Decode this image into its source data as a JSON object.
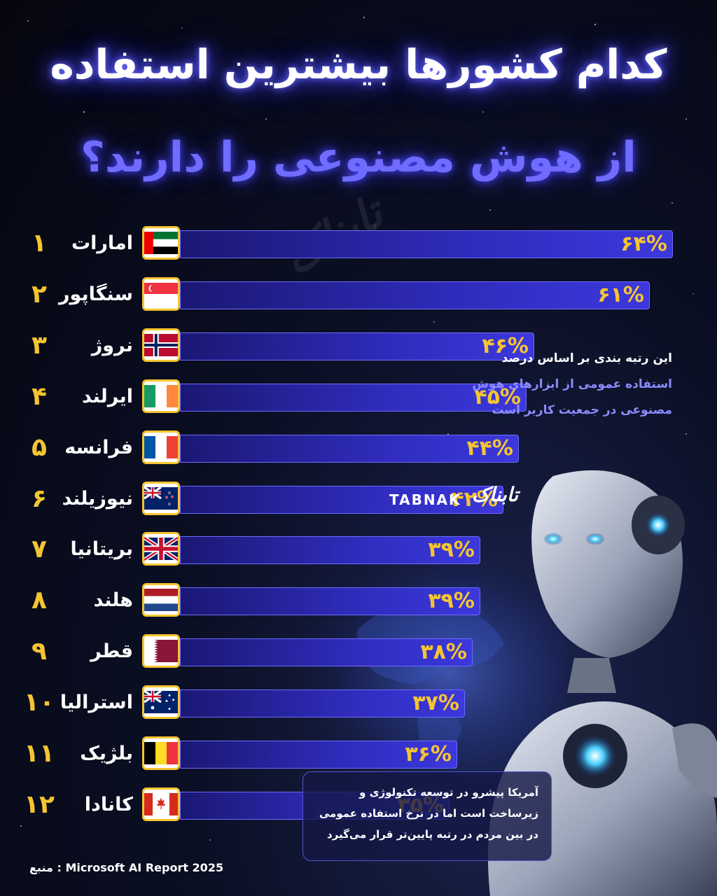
{
  "title_line1": "کدام کشورها بیشترین استفاده",
  "title_line2": "از هوش مصنوعی را دارند؟",
  "watermark": "تابناک",
  "note_top": {
    "line1": "این رتبه بندی بر اساس درصد",
    "line2": "استفاده عمومی از ابزارهای هوش",
    "line3": "مصنوعی در جمعیت کاربر است"
  },
  "logo": {
    "latin": "TABNAK",
    "persian": "تابناک"
  },
  "note_bottom": {
    "line1": "آمریکا پیشرو در توسعه تکنولوژی و",
    "line2": "زیرساخت است اما در نرخ استفاده عمومی",
    "line3": "در بین مردم در رتبه پایین‌تر قرار می‌گیرد"
  },
  "source": "منبع : Microsoft AI Report 2025",
  "colors": {
    "accent": "#f5c531",
    "bar": "#2f2cbd",
    "title_glow": "#6a6cff",
    "background": "#05060f"
  },
  "chart_data": {
    "type": "bar",
    "orientation": "horizontal",
    "unit": "%",
    "rows": [
      {
        "rank": "۱",
        "country": "امارات",
        "value": 64,
        "label": "۶۴%",
        "flag": "uae-flag"
      },
      {
        "rank": "۲",
        "country": "سنگاپور",
        "value": 61,
        "label": "۶۱%",
        "flag": "singapore-flag"
      },
      {
        "rank": "۳",
        "country": "نروژ",
        "value": 46,
        "label": "۴۶%",
        "flag": "norway-flag"
      },
      {
        "rank": "۴",
        "country": "ایرلند",
        "value": 45,
        "label": "۴۵%",
        "flag": "ireland-flag"
      },
      {
        "rank": "۵",
        "country": "فرانسه",
        "value": 44,
        "label": "۴۴%",
        "flag": "france-flag"
      },
      {
        "rank": "۶",
        "country": "نیوزیلند",
        "value": 42,
        "label": "۴۲%",
        "flag": "new-zealand-flag"
      },
      {
        "rank": "۷",
        "country": "بریتانیا",
        "value": 39,
        "label": "۳۹%",
        "flag": "uk-flag"
      },
      {
        "rank": "۸",
        "country": "هلند",
        "value": 39,
        "label": "۳۹%",
        "flag": "netherlands-flag"
      },
      {
        "rank": "۹",
        "country": "قطر",
        "value": 38,
        "label": "۳۸%",
        "flag": "qatar-flag"
      },
      {
        "rank": "۱۰",
        "country": "استرالیا",
        "value": 37,
        "label": "۳۷%",
        "flag": "australia-flag"
      },
      {
        "rank": "۱۱",
        "country": "بلژیک",
        "value": 36,
        "label": "۳۶%",
        "flag": "belgium-flag"
      },
      {
        "rank": "۱۲",
        "country": "کانادا",
        "value": 35,
        "label": "۳۵%",
        "flag": "canada-flag"
      }
    ]
  }
}
